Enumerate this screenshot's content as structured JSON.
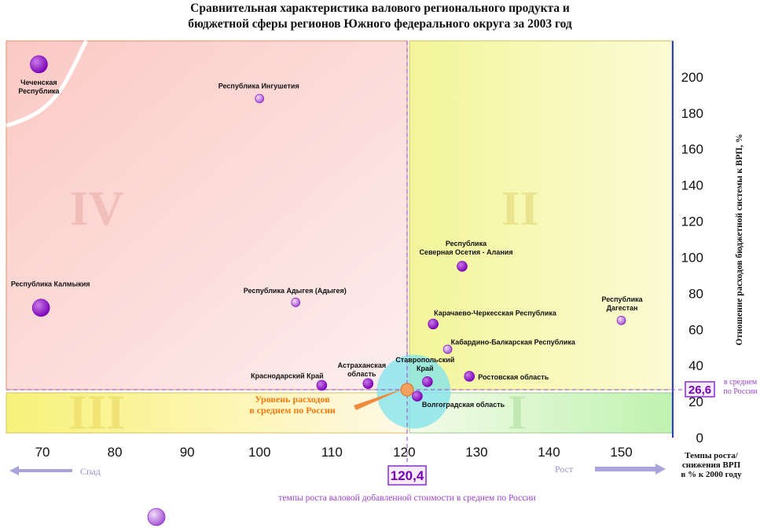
{
  "title_line1": "Сравнительная характеристика валового регионального продукта и",
  "title_line2": "бюджетной сферы регионов Южного федерального округа за 2003 год",
  "chart_data": {
    "type": "scatter",
    "xlim": [
      65,
      157
    ],
    "ylim": [
      0,
      220
    ],
    "x_ticks": [
      70,
      80,
      90,
      100,
      110,
      120,
      130,
      140,
      150
    ],
    "y_ticks": [
      0,
      20,
      40,
      60,
      80,
      100,
      120,
      140,
      160,
      180,
      200
    ],
    "xlabel": "Темпы роста/ снижения ВРП в % к 2000 году",
    "ylabel": "Отношение расходов бюджетной системы к ВРП, %",
    "quadrants": [
      "I",
      "II",
      "III",
      "IV"
    ],
    "quadrant_colors": {
      "I": "#bff2b0",
      "II": "#f4f59a",
      "III": "#f7f27a",
      "IV": "#fbc9c4"
    },
    "avg_x": 120.4,
    "avg_y": 26.6,
    "avg_x_label": "120,4",
    "avg_y_label": "26,6",
    "avg_y_note": "в среднем по России",
    "avg_x_note": "темпы роста валовой добавленной стоимости в среднем по России",
    "avg_point_label": "Уровень расходов в среднем по России",
    "left_arrow_label": "Спад",
    "right_arrow_label": "Рост",
    "points": [
      {
        "name": "Чеченская Республика",
        "x": 69.5,
        "y": 207,
        "size": "large"
      },
      {
        "name": "Республика Ингушетия",
        "x": 100,
        "y": 188,
        "size": "small"
      },
      {
        "name": "Республика Калмыкия",
        "x": 69.8,
        "y": 72,
        "size": "large"
      },
      {
        "name": "Республика Адыгея (Адыгея)",
        "x": 105,
        "y": 75,
        "size": "small"
      },
      {
        "name": "Республика Северная Осетия - Алания",
        "x": 128,
        "y": 95,
        "size": "medium"
      },
      {
        "name": "Карачаево-Черкесская Республика",
        "x": 124,
        "y": 63,
        "size": "medium"
      },
      {
        "name": "Республика Дагестан",
        "x": 150,
        "y": 65,
        "size": "small"
      },
      {
        "name": "Кабардино-Балкарская Республика",
        "x": 126,
        "y": 49,
        "size": "small"
      },
      {
        "name": "Ростовская область",
        "x": 129,
        "y": 34,
        "size": "medium"
      },
      {
        "name": "Ставропольский Край",
        "x": 123.2,
        "y": 31,
        "size": "medium"
      },
      {
        "name": "Астраханская область",
        "x": 115,
        "y": 30,
        "size": "medium"
      },
      {
        "name": "Краснодарский Край",
        "x": 108.6,
        "y": 29,
        "size": "medium"
      },
      {
        "name": "Волгоградская область",
        "x": 121.8,
        "y": 23,
        "size": "medium"
      }
    ]
  }
}
